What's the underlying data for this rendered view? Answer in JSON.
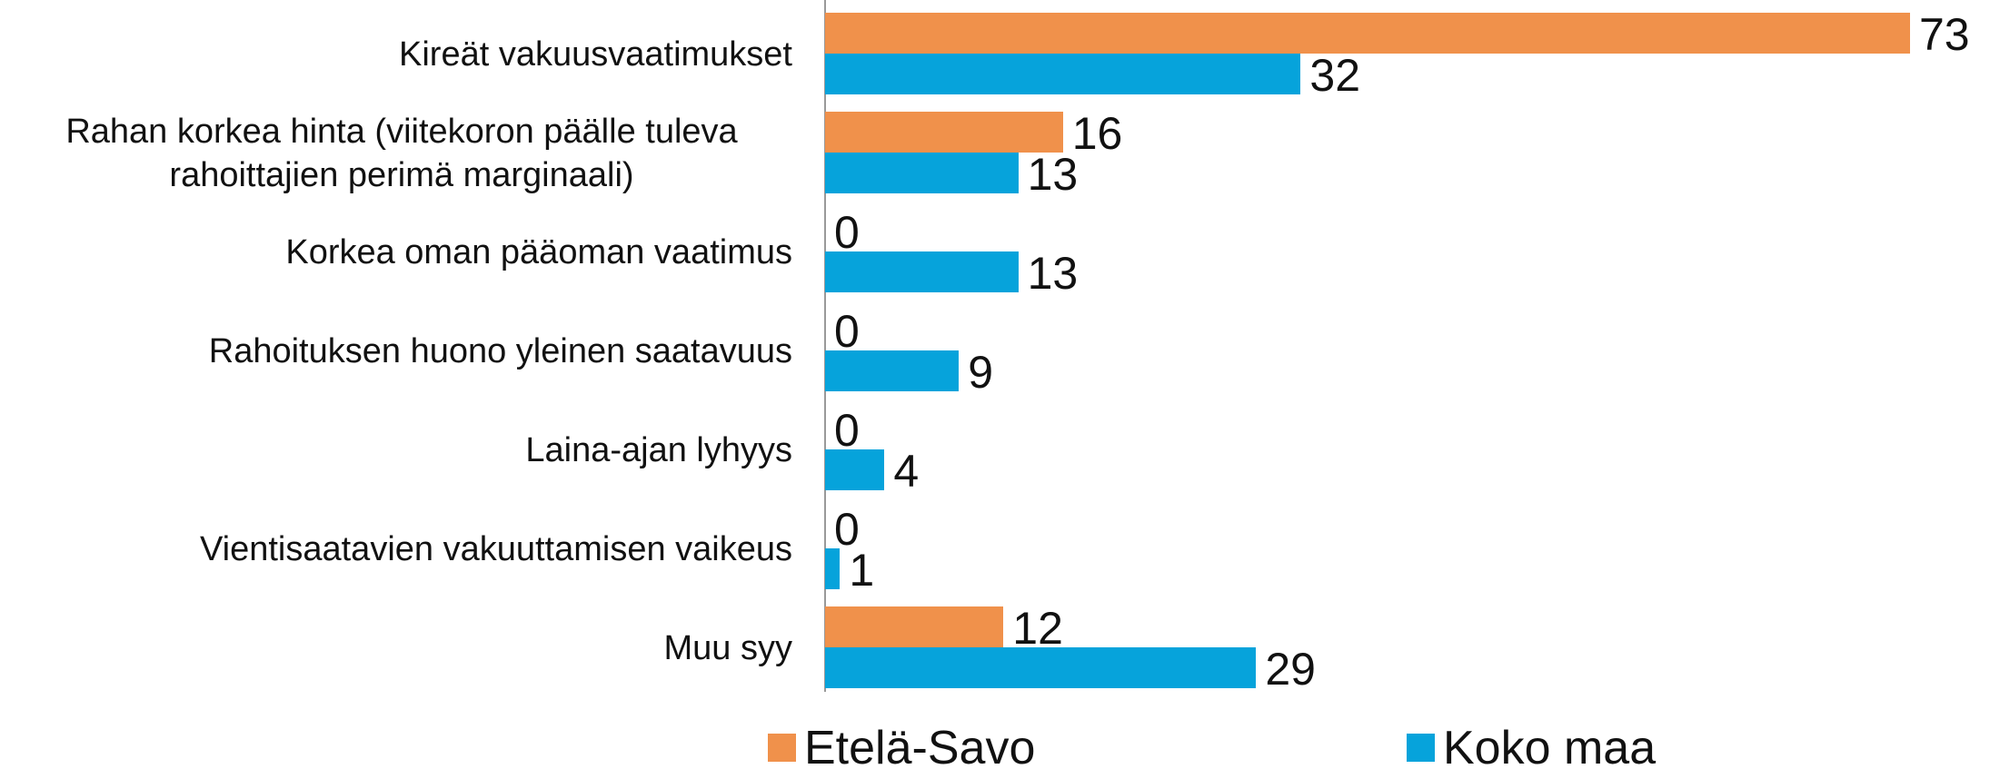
{
  "chart_data": {
    "type": "bar",
    "orientation": "horizontal",
    "categories": [
      "Kireät vakuusvaatimukset",
      "Rahan korkea hinta (viitekoron päälle tuleva rahoittajien perimä marginaali)",
      "Korkea oman pääoman vaatimus",
      "Rahoituksen huono yleinen saatavuus",
      "Laina-ajan lyhyys",
      "Vientisaatavien vakuuttamisen vaikeus",
      "Muu syy"
    ],
    "series": [
      {
        "name": "Etelä-Savo",
        "color": "#f0914b",
        "values": [
          73,
          16,
          0,
          0,
          0,
          0,
          12
        ]
      },
      {
        "name": "Koko maa",
        "color": "#06a3db",
        "values": [
          32,
          13,
          13,
          9,
          4,
          1,
          29
        ]
      }
    ],
    "legend": "bottom"
  }
}
